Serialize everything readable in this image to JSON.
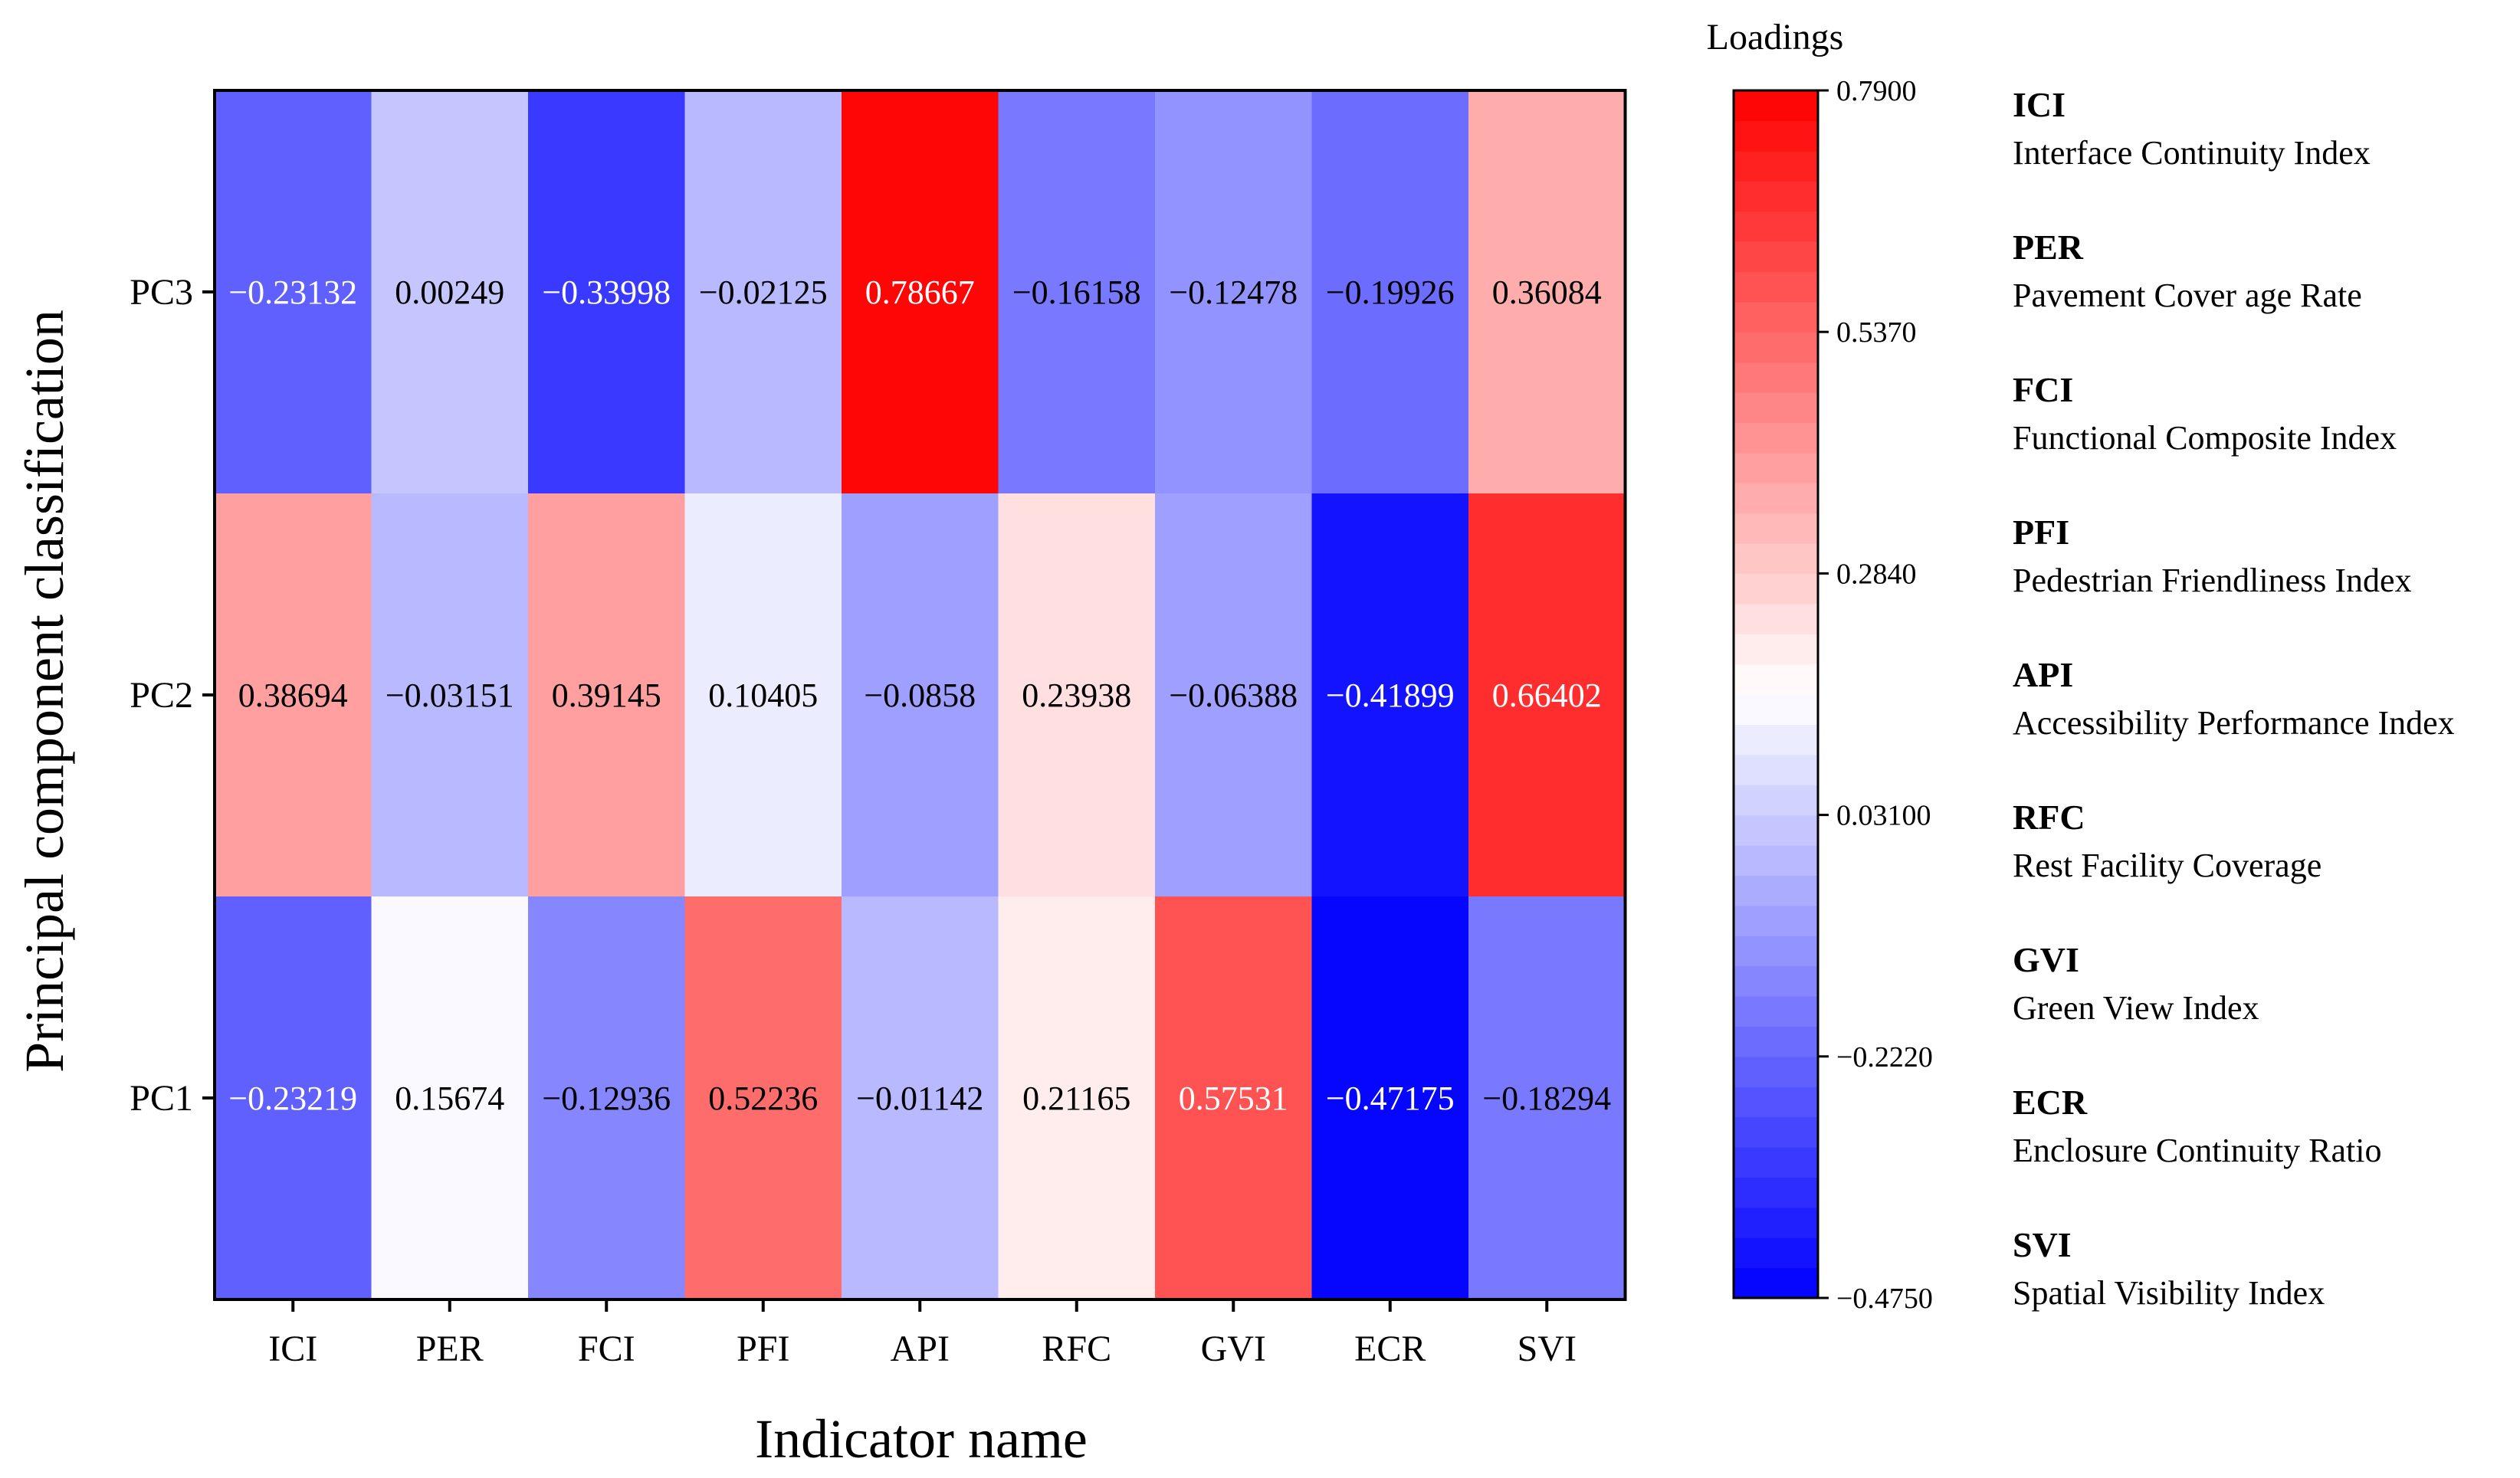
{
  "chart_data": {
    "type": "heatmap",
    "title": "",
    "xlabel": "Indicator name",
    "ylabel": "Principal component classification",
    "x_categories": [
      "ICI",
      "PER",
      "FCI",
      "PFI",
      "API",
      "RFC",
      "GVI",
      "ECR",
      "SVI"
    ],
    "y_categories": [
      "PC3",
      "PC2",
      "PC1"
    ],
    "values": [
      [
        -0.23132,
        0.00249,
        -0.33998,
        -0.02125,
        0.78667,
        -0.16158,
        -0.12478,
        -0.19926,
        0.36084
      ],
      [
        0.38694,
        -0.03151,
        0.39145,
        0.10405,
        -0.0858,
        0.23938,
        -0.06388,
        -0.41899,
        0.66402
      ],
      [
        -0.23219,
        0.15674,
        -0.12936,
        0.52236,
        -0.01142,
        0.21165,
        0.57531,
        -0.47175,
        -0.18294
      ]
    ],
    "value_labels": [
      [
        "−0.23132",
        "0.00249",
        "−0.33998",
        "−0.02125",
        "0.78667",
        "−0.16158",
        "−0.12478",
        "−0.19926",
        "0.36084"
      ],
      [
        "0.38694",
        "−0.03151",
        "0.39145",
        "0.10405",
        "−0.0858",
        "0.23938",
        "−0.06388",
        "−0.41899",
        "0.66402"
      ],
      [
        "−0.23219",
        "0.15674",
        "−0.12936",
        "0.52236",
        "−0.01142",
        "0.21165",
        "0.57531",
        "−0.47175",
        "−0.18294"
      ]
    ],
    "colorbar": {
      "title": "Loadings",
      "min": -0.475,
      "max": 0.79,
      "levels": 40,
      "colors": {
        "low": "#0000ff",
        "mid": "#ffffff",
        "high": "#ff0000"
      },
      "ticks": [
        0.79,
        0.537,
        0.284,
        0.031,
        -0.222,
        -0.475
      ],
      "tick_labels": [
        "0.7900",
        "0.5370",
        "0.2840",
        "0.03100",
        "−0.2220",
        "−0.4750"
      ]
    },
    "legend": [
      {
        "abbr": "ICI",
        "full": "Interface Continuity Index"
      },
      {
        "abbr": "PER",
        "full": "Pavement Cover age Rate"
      },
      {
        "abbr": "FCI",
        "full": "Functional Composite Index"
      },
      {
        "abbr": "PFI",
        "full": "Pedestrian Friendliness Index"
      },
      {
        "abbr": "API",
        "full": "Accessibility Performance Index"
      },
      {
        "abbr": "RFC",
        "full": "Rest Facility Coverage"
      },
      {
        "abbr": "GVI",
        "full": "Green View Index"
      },
      {
        "abbr": "ECR",
        "full": "Enclosure Continuity Ratio"
      },
      {
        "abbr": "SVI",
        "full": "Spatial Visibility Index"
      }
    ]
  }
}
